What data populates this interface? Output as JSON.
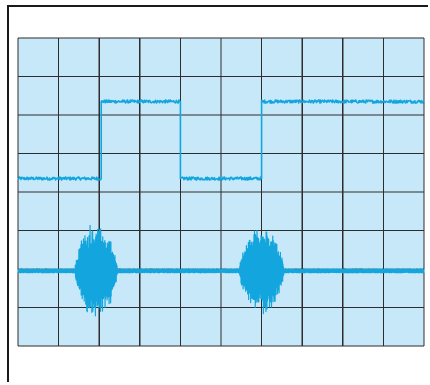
{
  "chart_data": {
    "type": "line",
    "title": "",
    "xlabel": "",
    "ylabel": "",
    "grid": true,
    "xlim": [
      0,
      10
    ],
    "ylim": [
      0,
      8
    ],
    "background_color": "#c6e8f8",
    "grid_color": "#2d2d2d",
    "trace_color": "#12a5de",
    "series": [
      {
        "kind": "square_wave",
        "low_level": 4.35,
        "high_level": 6.35,
        "transitions": [
          {
            "x": 2.05,
            "to": "high"
          },
          {
            "x": 4.0,
            "to": "low"
          },
          {
            "x": 6.0,
            "to": "high"
          }
        ],
        "start_level": "low",
        "noise_amplitude": 0.04
      },
      {
        "kind": "burst",
        "baseline": 1.95,
        "bursts": [
          {
            "x_start": 1.4,
            "x_end": 2.45,
            "amplitude": 1.3
          },
          {
            "x_start": 5.45,
            "x_end": 6.55,
            "amplitude": 1.2
          }
        ],
        "noise_amplitude": 0.05
      }
    ]
  }
}
